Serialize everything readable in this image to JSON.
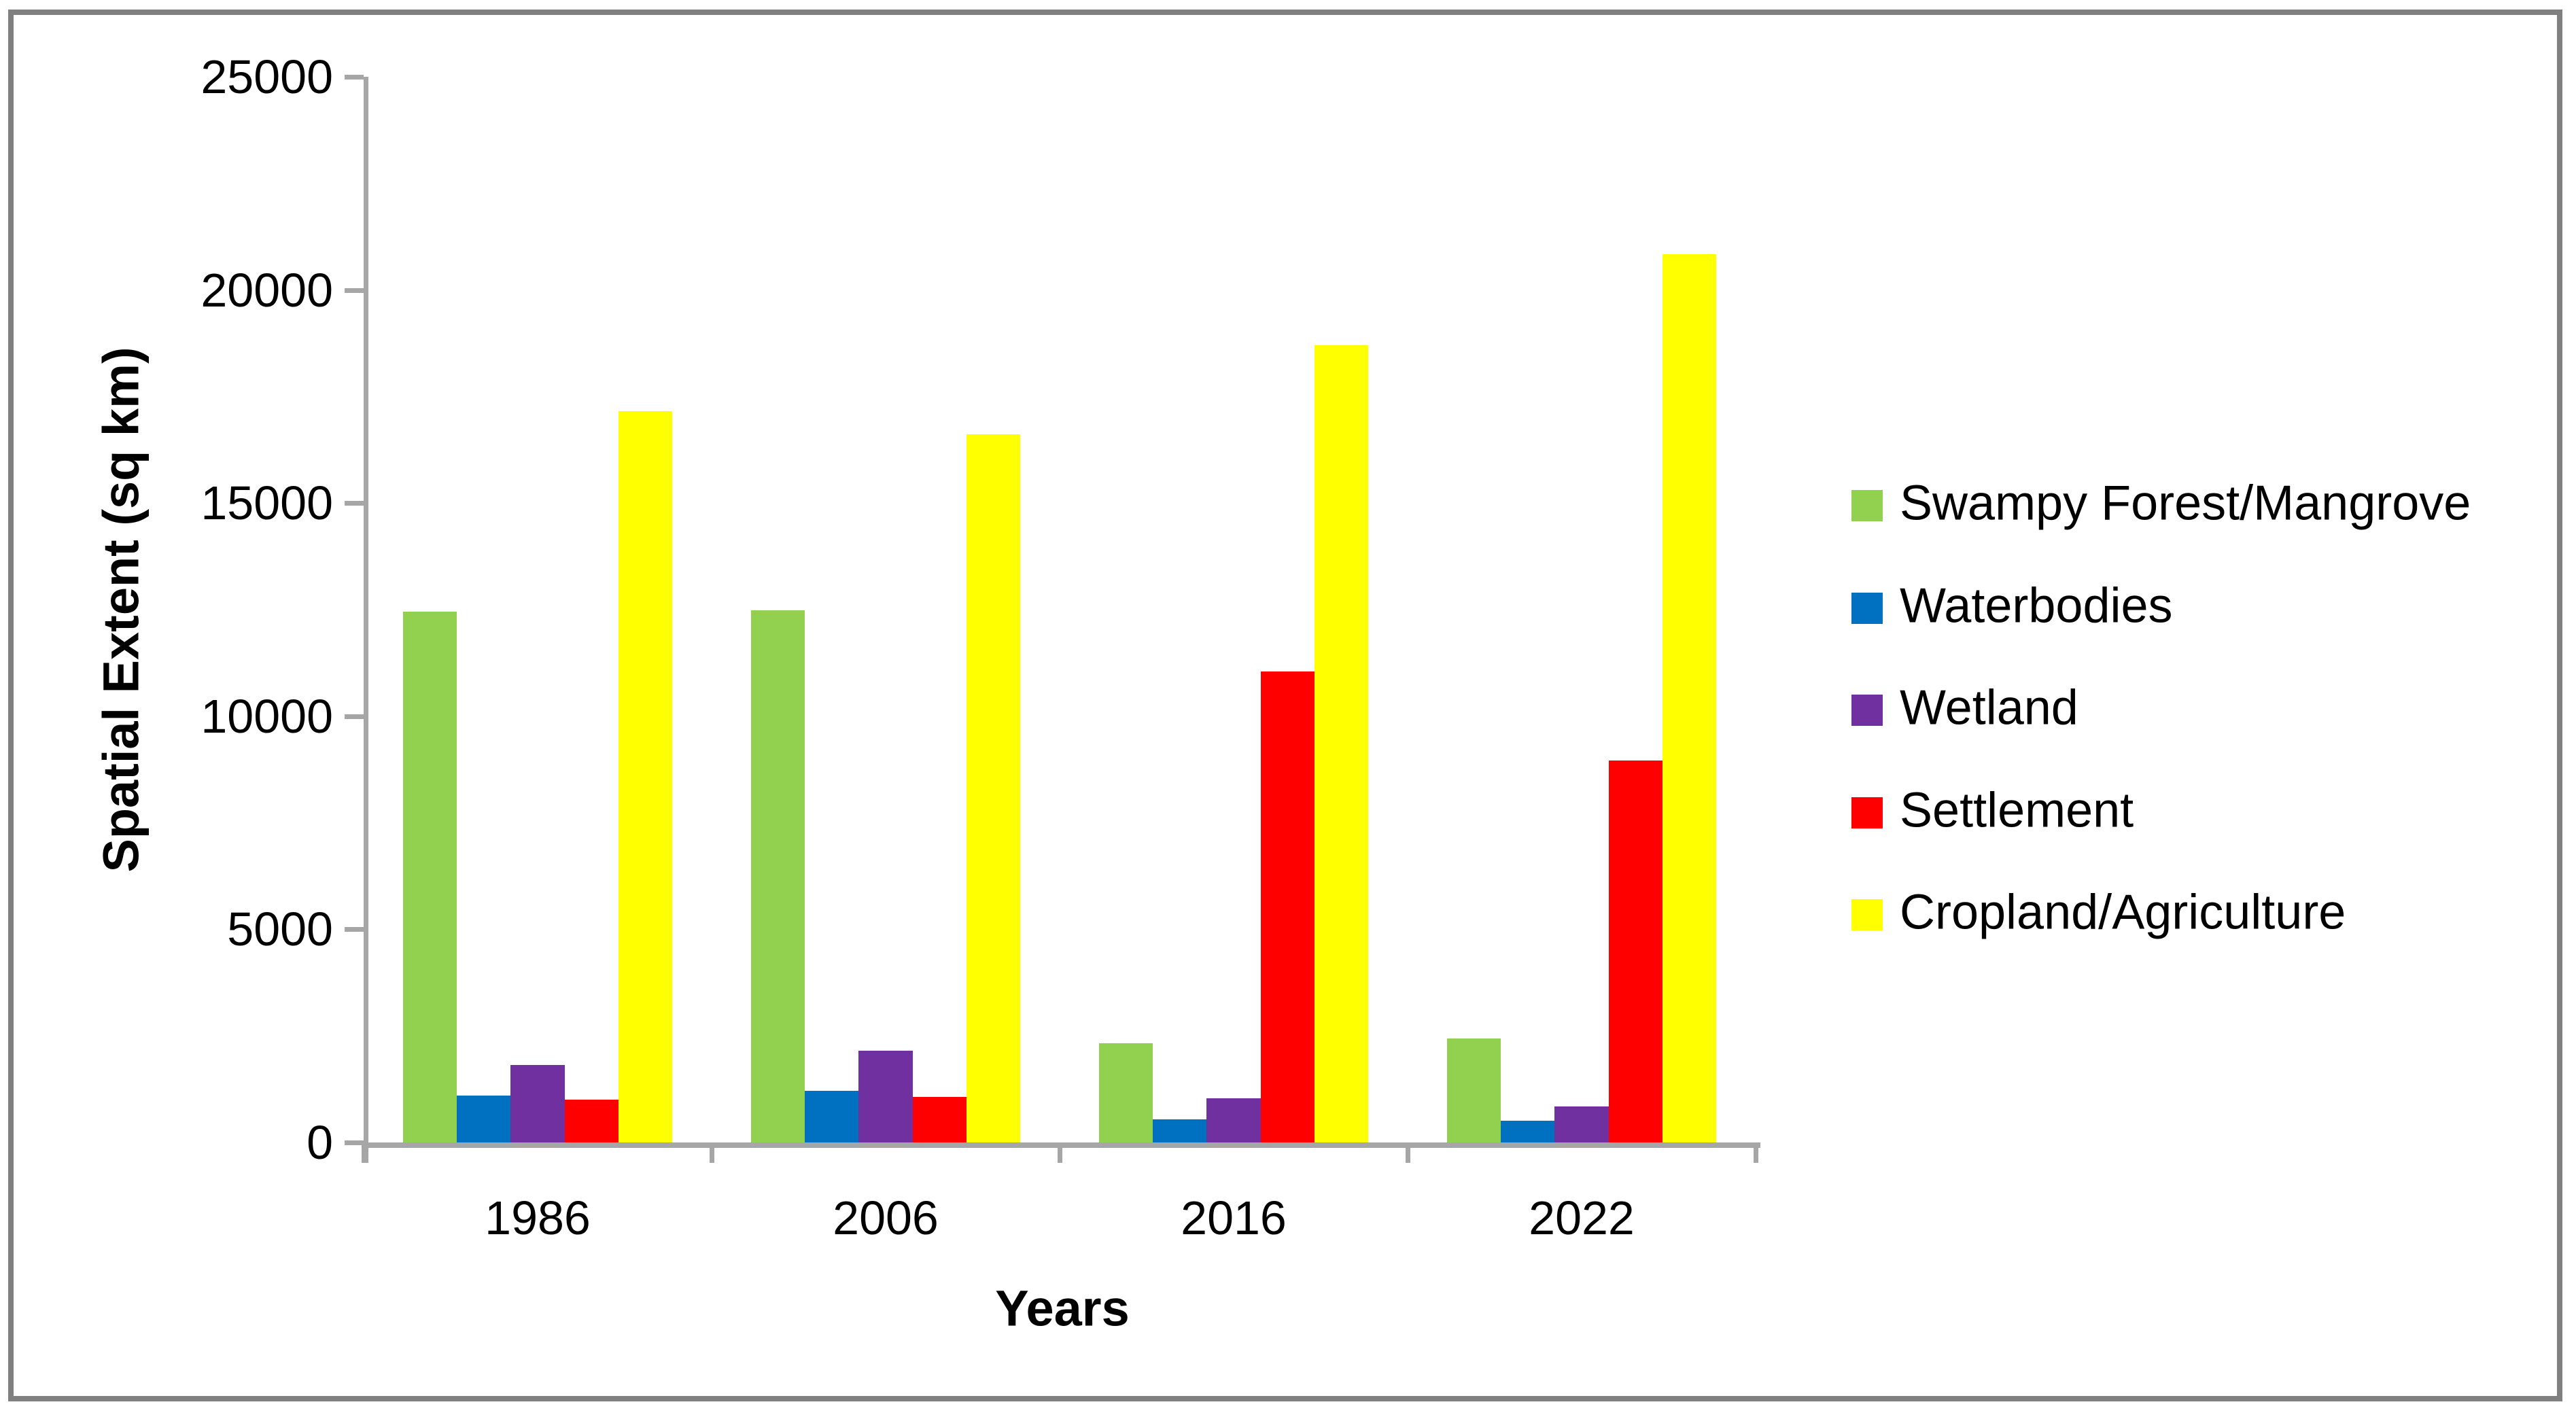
{
  "chart_data": {
    "type": "bar",
    "title": "",
    "categories": [
      "1986",
      "2006",
      "2016",
      "2022"
    ],
    "series": [
      {
        "name": "Swampy Forest/Mangrove",
        "color": "#92D050",
        "values": [
          12450,
          12480,
          2330,
          2440
        ]
      },
      {
        "name": "Waterbodies",
        "color": "#0070C0",
        "values": [
          1100,
          1210,
          540,
          510
        ]
      },
      {
        "name": "Wetland",
        "color": "#7030A0",
        "values": [
          1820,
          2150,
          1040,
          850
        ]
      },
      {
        "name": "Settlement",
        "color": "#FF0000",
        "values": [
          1000,
          1070,
          11050,
          8960
        ]
      },
      {
        "name": "Cropland/Agriculture",
        "color": "#FFFF00",
        "values": [
          17150,
          16610,
          18700,
          20840
        ]
      }
    ],
    "xlabel": "Years",
    "ylabel": "Spatial Extent (sq km)",
    "ylim": [
      0,
      25000
    ],
    "yticks": [
      0,
      5000,
      10000,
      15000,
      20000,
      25000
    ],
    "grid": false,
    "legend_position": "right",
    "bar_outline": "none"
  },
  "colors": {
    "background": "#FFFFFF",
    "axis": "#A6A6A6",
    "frame_border": "#808080",
    "text": "#000000"
  }
}
